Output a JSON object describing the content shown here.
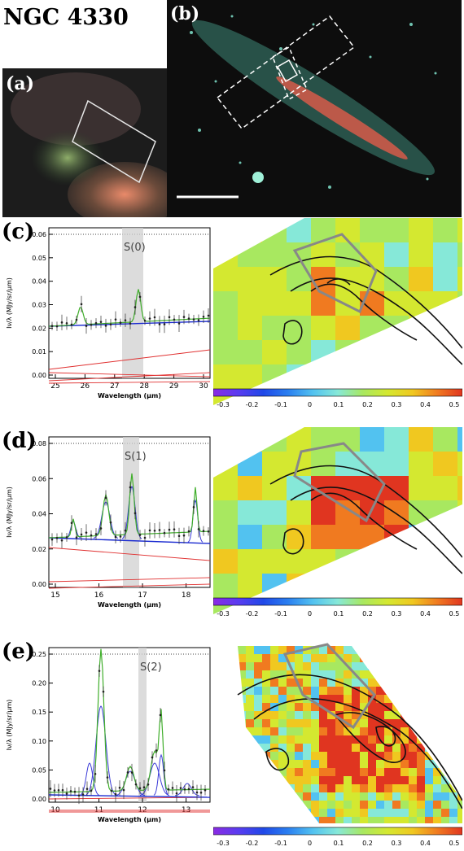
{
  "figure": {
    "title": "NGC 4330",
    "panels": {
      "a": {
        "label": "(a)"
      },
      "b": {
        "label": "(b)"
      },
      "c": {
        "label": "(c)",
        "line": "S(0)",
        "xlabel": "Wavelength (μm)",
        "ylabel": "Iν/λ (MJy/sr/μm)",
        "xticks": [
          "25",
          "26",
          "27",
          "28",
          "29",
          "30"
        ],
        "yticks": [
          "0.00",
          "0.01",
          "0.02",
          "0.03",
          "0.04",
          "0.05",
          "0.06"
        ]
      },
      "d": {
        "label": "(d)",
        "line": "S(1)",
        "xlabel": "Wavelength (μm)",
        "ylabel": "Iν/λ (MJy/sr/μm)",
        "xticks": [
          "15",
          "16",
          "17",
          "18"
        ],
        "yticks": [
          "0.00",
          "0.02",
          "0.04",
          "0.06",
          "0.08"
        ]
      },
      "e": {
        "label": "(e)",
        "line": "S(2)",
        "xlabel": "Wavelength (μm)",
        "ylabel": "Iν/λ (MJy/sr/μm)",
        "xticks": [
          "10",
          "11",
          "12",
          "13"
        ],
        "yticks": [
          "0.00",
          "0.05",
          "0.10",
          "0.15",
          "0.20",
          "0.25"
        ]
      }
    },
    "colorbar_ticks": [
      "-0.3",
      "-0.2",
      "-0.1",
      "0",
      "0.1",
      "0.2",
      "0.3",
      "0.4",
      "0.5"
    ]
  }
}
